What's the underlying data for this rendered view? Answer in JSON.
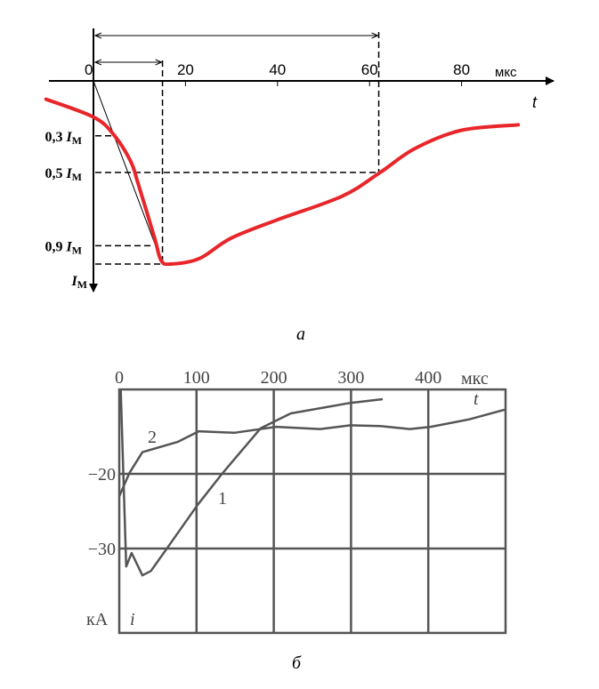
{
  "chart_data": [
    {
      "type": "line",
      "caption": "а",
      "xlabel": "t",
      "xunit": "мкс",
      "x_ticks": [
        "0",
        "20",
        "40",
        "60",
        "80"
      ],
      "xlim": [
        -10,
        100
      ],
      "ylim": [
        0,
        1
      ],
      "y_inverted": true,
      "y_ticks": [
        {
          "value": 0.3,
          "prefix": "0,3 ",
          "label": "I",
          "sub": "М"
        },
        {
          "value": 0.5,
          "prefix": "0,5 ",
          "label": "I",
          "sub": "М"
        },
        {
          "value": 0.9,
          "prefix": "0,9 ",
          "label": "I",
          "sub": "М"
        },
        {
          "value": 1.0,
          "prefix": "",
          "label": "I",
          "sub": "М"
        }
      ],
      "series_color": "#e8262a",
      "x": [
        -10.3,
        0.2,
        4.6,
        8.1,
        9.7,
        13.2,
        14.7,
        16.8,
        23.0,
        29.8,
        39.8,
        54.0,
        62.3,
        69.8,
        79.9,
        92.3
      ],
      "y": [
        0.1,
        0.2,
        0.3,
        0.44,
        0.56,
        0.85,
        0.98,
        1.0,
        0.97,
        0.86,
        0.76,
        0.63,
        0.5,
        0.37,
        0.27,
        0.24
      ],
      "annotations": {
        "front_time": 15,
        "half_decay_time": 62,
        "tangent": [
          [
            0,
            0
          ],
          [
            15,
            1.0
          ]
        ]
      }
    },
    {
      "type": "line",
      "caption": "б",
      "xlabel": "t",
      "xunit": "мкс",
      "ylabel": "i",
      "yunit": "кА",
      "x_ticks": [
        "0",
        "100",
        "200",
        "300",
        "400"
      ],
      "y_ticks": [
        "−20",
        "−30"
      ],
      "xlim": [
        0,
        500
      ],
      "ylim": [
        -41.3,
        -8.7
      ],
      "grid": true,
      "series_color": "#555555",
      "series": [
        {
          "name": "1",
          "x": [
            0,
            2,
            9,
            16,
            30,
            41,
            61,
            101,
            133,
            183,
            222,
            299,
            341
          ],
          "y": [
            -9.5,
            -8.9,
            -32.4,
            -30.6,
            -33.6,
            -33.0,
            -30.1,
            -24.2,
            -20.0,
            -13.9,
            -11.9,
            -10.5,
            -10.0
          ]
        },
        {
          "name": "2",
          "x": [
            0,
            13,
            30,
            76,
            103,
            149,
            203,
            260,
            299,
            338,
            376,
            403,
            453,
            499
          ],
          "y": [
            -23.0,
            -19.9,
            -17.1,
            -15.7,
            -14.3,
            -14.5,
            -13.7,
            -14.0,
            -13.5,
            -13.6,
            -14.0,
            -13.7,
            -12.7,
            -11.4
          ]
        }
      ]
    }
  ]
}
